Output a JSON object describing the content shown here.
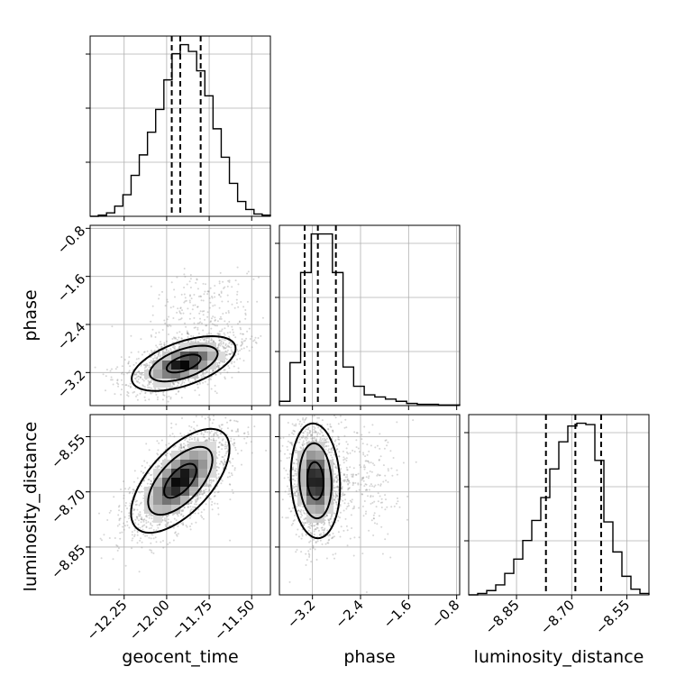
{
  "chart_data": {
    "type": "corner",
    "parameters": [
      "geocent_time",
      "phase",
      "luminosity_distance"
    ],
    "axis_labels": [
      "geocent_time",
      "phase",
      "luminosity_distance"
    ],
    "ranges": {
      "geocent_time": [
        -12.45,
        -11.39
      ],
      "phase": [
        -3.75,
        -0.75
      ],
      "luminosity_distance": [
        -8.98,
        -8.49
      ]
    },
    "ticks": {
      "geocent_time": [
        -12.25,
        -12.0,
        -11.75,
        -11.5
      ],
      "phase": [
        -3.2,
        -2.4,
        -1.6,
        -0.8
      ],
      "luminosity_distance": [
        -8.85,
        -8.7,
        -8.55
      ]
    },
    "tick_labels": {
      "geocent_time": [
        "−12.25",
        "−12.00",
        "−11.75",
        "−11.50"
      ],
      "phase": [
        "−3.2",
        "−2.4",
        "−1.6",
        "−0.8"
      ],
      "luminosity_distance": [
        "−8.85",
        "−8.70",
        "−8.55"
      ]
    },
    "quantiles": {
      "geocent_time": [
        -11.97,
        -11.92,
        -11.8
      ],
      "phase": [
        -3.33,
        -3.11,
        -2.81
      ],
      "luminosity_distance": [
        -8.77,
        -8.69,
        -8.62
      ]
    },
    "histograms": {
      "geocent_time": {
        "edges": [
          -12.45,
          -11.39
        ],
        "counts": [
          0,
          1,
          3,
          9,
          19,
          36,
          54,
          74,
          94,
          120,
          143,
          151,
          145,
          128,
          106,
          77,
          52,
          29,
          13,
          6,
          2,
          1
        ]
      },
      "phase": {
        "edges": [
          -3.75,
          -0.75
        ],
        "counts": [
          2,
          20,
          62,
          80,
          80,
          62,
          18,
          9,
          5,
          4,
          3,
          2,
          1,
          0.6,
          0.6,
          0.3,
          0.3
        ]
      },
      "luminosity_distance": {
        "edges": [
          -8.98,
          -8.49
        ],
        "counts": [
          0,
          1,
          3,
          7,
          15,
          25,
          38,
          52,
          68,
          88,
          107,
          118,
          120,
          119,
          94,
          51,
          30,
          13,
          4,
          1
        ]
      }
    },
    "pair_means": {
      "phase_vs_geocent_time": {
        "x": -11.9,
        "y": -3.05
      },
      "luminosity_distance_vs_geocent_time": {
        "x": -11.92,
        "y": -8.67
      },
      "luminosity_distance_vs_phase": {
        "x": -3.15,
        "y": -8.67
      }
    },
    "contour_levels": [
      0.39,
      0.86,
      0.99
    ],
    "grid": true,
    "colors": {
      "line": "#000000",
      "grid": "#b0b0b0",
      "points": "#808080"
    }
  }
}
